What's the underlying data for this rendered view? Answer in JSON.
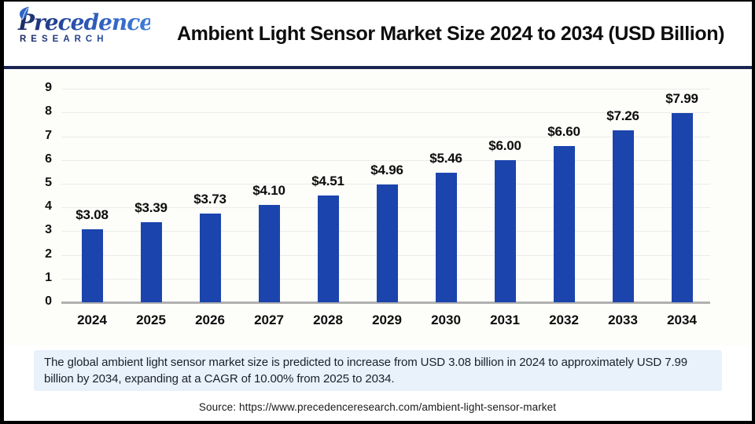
{
  "header": {
    "logo": {
      "line1": "Precedence",
      "line2": "RESEARCH"
    },
    "title": "Ambient Light Sensor Market Size 2024 to 2034 (USD Billion)"
  },
  "chart_data": {
    "type": "bar",
    "title": "Ambient Light Sensor Market Size 2024 to 2034 (USD Billion)",
    "categories": [
      "2024",
      "2025",
      "2026",
      "2027",
      "2028",
      "2029",
      "2030",
      "2031",
      "2032",
      "2033",
      "2034"
    ],
    "values": [
      3.08,
      3.39,
      3.73,
      4.1,
      4.51,
      4.96,
      5.46,
      6.0,
      6.6,
      7.26,
      7.99
    ],
    "value_labels": [
      "$3.08",
      "$3.39",
      "$3.73",
      "$4.10",
      "$4.51",
      "$4.96",
      "$5.46",
      "$6.00",
      "$6.60",
      "$7.26",
      "$7.99"
    ],
    "xlabel": "",
    "ylabel": "",
    "ylim": [
      0,
      9
    ],
    "ytick_interval": 1,
    "grid": "horizontal",
    "legend": "none",
    "bar_color": "#1b44ad"
  },
  "note": {
    "text": "The global ambient light sensor market size is predicted to increase from USD 3.08 billion in 2024 to approximately USD 7.99 billion by 2034, expanding at a CAGR of 10.00% from 2025 to 2034."
  },
  "source": {
    "text": "Source: https://www.precedenceresearch.com/ambient-light-sensor-market"
  },
  "colors": {
    "bar": "#1b44ad",
    "separator_navy": "#1b2350",
    "note_background": "#e9f1fb",
    "gridline": "#ebebeb",
    "axis_baseline": "#b0b0b0",
    "logo_navy": "#1d2a63",
    "logo_blue": "#3f7ed8"
  }
}
